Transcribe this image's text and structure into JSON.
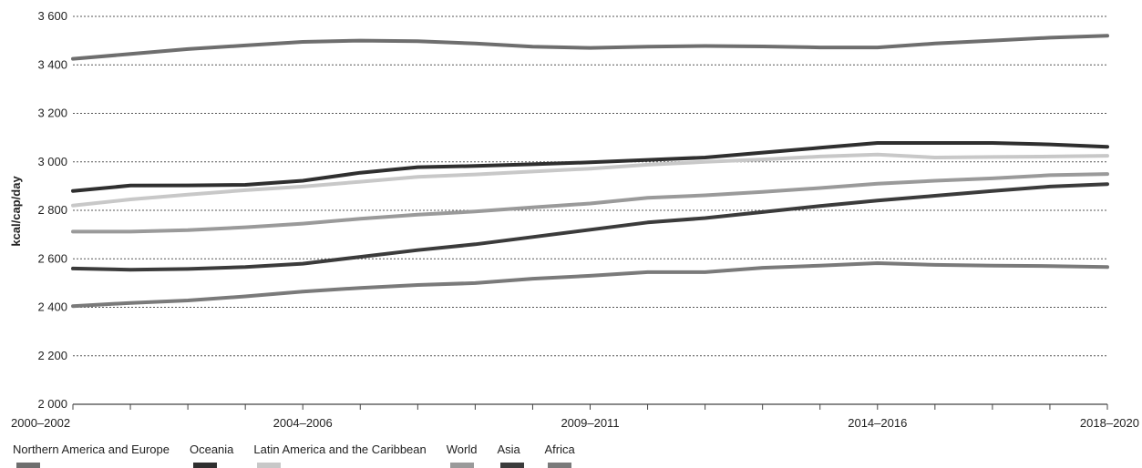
{
  "chart_data": {
    "type": "line",
    "title": "",
    "xlabel": "",
    "ylabel": "kcal/cap/day",
    "ylim": [
      2000,
      3600
    ],
    "yticks": [
      2000,
      2200,
      2400,
      2600,
      2800,
      3000,
      3200,
      3400,
      3600
    ],
    "ytick_labels": [
      "2 000",
      "2 200",
      "2 400",
      "2 600",
      "2 800",
      "3 000",
      "3 200",
      "3 400",
      "3 600"
    ],
    "grid": "horizontal dotted",
    "legend_position": "bottom",
    "x": [
      "2000–2002",
      "2001–2003",
      "2002–2004",
      "2003–2005",
      "2004–2006",
      "2005–2007",
      "2006–2008",
      "2007–2009",
      "2008–2010",
      "2009–2011",
      "2010–2012",
      "2011–2013",
      "2012–2014",
      "2013–2015",
      "2014–2016",
      "2015–2017",
      "2016–2018",
      "2017–2019",
      "2018–2020"
    ],
    "xtick_labels_shown": [
      "2000–2002",
      "2004–2006",
      "2009–2011",
      "2014–2016",
      "2018–2020"
    ],
    "series": [
      {
        "name": "Northern America and Europe",
        "color": "#6e6e6e",
        "values": [
          3425,
          3445,
          3465,
          3480,
          3495,
          3500,
          3498,
          3488,
          3475,
          3470,
          3475,
          3478,
          3476,
          3472,
          3472,
          3488,
          3500,
          3512,
          3520
        ]
      },
      {
        "name": "Oceania",
        "color": "#2f2f2f",
        "values": [
          2880,
          2902,
          2903,
          2905,
          2922,
          2955,
          2978,
          2983,
          2990,
          2998,
          3008,
          3018,
          3038,
          3058,
          3078,
          3078,
          3078,
          3072,
          3062
        ]
      },
      {
        "name": "Latin America and the Caribbean",
        "color": "#c8c8c8",
        "values": [
          2820,
          2845,
          2865,
          2883,
          2898,
          2918,
          2938,
          2948,
          2960,
          2972,
          2988,
          3000,
          3010,
          3022,
          3030,
          3018,
          3020,
          3022,
          3025
        ]
      },
      {
        "name": "World",
        "color": "#9a9a9a",
        "values": [
          2712,
          2712,
          2718,
          2730,
          2745,
          2765,
          2782,
          2795,
          2812,
          2828,
          2852,
          2862,
          2876,
          2892,
          2910,
          2922,
          2932,
          2945,
          2950
        ]
      },
      {
        "name": "Asia",
        "color": "#3b3b3b",
        "values": [
          2560,
          2555,
          2558,
          2566,
          2580,
          2608,
          2636,
          2660,
          2690,
          2720,
          2750,
          2768,
          2793,
          2818,
          2840,
          2860,
          2880,
          2898,
          2908
        ]
      },
      {
        "name": "Africa",
        "color": "#7a7a7a",
        "values": [
          2405,
          2418,
          2428,
          2445,
          2465,
          2480,
          2492,
          2500,
          2518,
          2530,
          2545,
          2545,
          2563,
          2572,
          2582,
          2575,
          2572,
          2570,
          2566
        ]
      }
    ]
  }
}
